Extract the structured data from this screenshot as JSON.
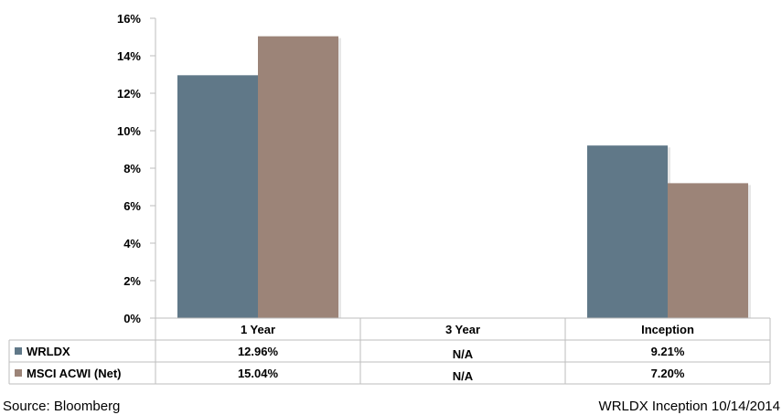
{
  "chart_data": {
    "type": "bar",
    "categories": [
      "1 Year",
      "3 Year",
      "Inception"
    ],
    "series": [
      {
        "name": "WRLDX",
        "values": [
          12.96,
          null,
          9.21
        ],
        "labels": [
          "12.96%",
          "N/A",
          "9.21%"
        ],
        "color": "#607888"
      },
      {
        "name": "MSCI ACWI (Net)",
        "values": [
          15.04,
          null,
          7.2
        ],
        "labels": [
          "15.04%",
          "N/A",
          "7.20%"
        ],
        "color": "#9c8478"
      }
    ],
    "ylim": [
      0,
      16
    ],
    "yticks": [
      "0%",
      "2%",
      "4%",
      "6%",
      "8%",
      "10%",
      "12%",
      "14%",
      "16%"
    ],
    "ytick_values": [
      0,
      2,
      4,
      6,
      8,
      10,
      12,
      14,
      16
    ],
    "grid": false,
    "legend": "data-table"
  },
  "footer": {
    "source": "Source: Bloomberg",
    "note": "WRLDX Inception 10/14/2014"
  }
}
